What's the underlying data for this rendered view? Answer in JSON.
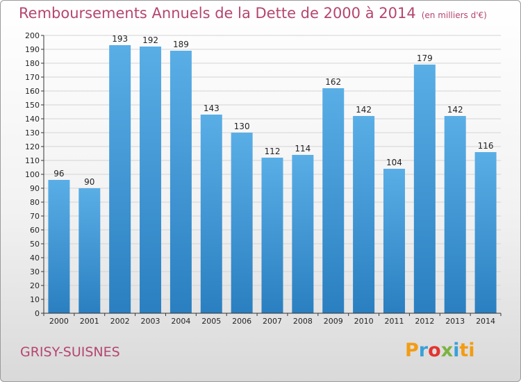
{
  "chart_data": {
    "type": "bar",
    "title": "Remboursements Annuels de la Dette de 2000 à 2014",
    "subtitle": "(en milliers d'€)",
    "categories": [
      "2000",
      "2001",
      "2002",
      "2003",
      "2004",
      "2005",
      "2006",
      "2007",
      "2008",
      "2009",
      "2010",
      "2011",
      "2012",
      "2013",
      "2014"
    ],
    "values": [
      96,
      90,
      193,
      192,
      189,
      143,
      130,
      112,
      114,
      162,
      142,
      104,
      179,
      142,
      116
    ],
    "ylim": [
      0,
      200
    ],
    "ytick_step": 10,
    "grid": true,
    "xlabel": "",
    "ylabel": "",
    "colors": {
      "bar_top": "#5aaee6",
      "bar_bottom": "#2a7fc0",
      "title": "#b5456f"
    }
  },
  "commune": "GRISY-SUISNES",
  "logo": {
    "text": "Proxiti",
    "letters": [
      "P",
      "r",
      "o",
      "x",
      "i",
      "ti"
    ]
  }
}
